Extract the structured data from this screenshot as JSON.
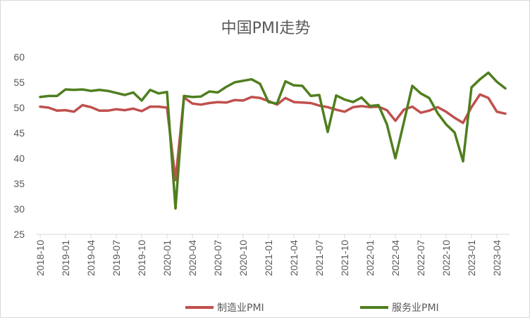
{
  "chart_data": {
    "type": "line",
    "title": "中国PMI走势",
    "xlabel": "",
    "ylabel": "",
    "ylim": [
      25,
      60
    ],
    "yticks": [
      "25",
      "30",
      "35",
      "40",
      "45",
      "50",
      "55",
      "60"
    ],
    "grid": false,
    "legend_position": "bottom",
    "x": [
      "2018-10",
      "2018-11",
      "2018-12",
      "2019-01",
      "2019-02",
      "2019-03",
      "2019-04",
      "2019-05",
      "2019-06",
      "2019-07",
      "2019-08",
      "2019-09",
      "2019-10",
      "2019-11",
      "2019-12",
      "2020-01",
      "2020-02",
      "2020-03",
      "2020-04",
      "2020-05",
      "2020-06",
      "2020-07",
      "2020-08",
      "2020-09",
      "2020-10",
      "2020-11",
      "2020-12",
      "2021-01",
      "2021-02",
      "2021-03",
      "2021-04",
      "2021-05",
      "2021-06",
      "2021-07",
      "2021-08",
      "2021-09",
      "2021-10",
      "2021-11",
      "2021-12",
      "2022-01",
      "2022-02",
      "2022-03",
      "2022-04",
      "2022-05",
      "2022-06",
      "2022-07",
      "2022-08",
      "2022-09",
      "2022-10",
      "2022-11",
      "2022-12",
      "2023-01",
      "2023-02",
      "2023-03",
      "2023-04",
      "2023-05"
    ],
    "xtick_labels": [
      "2018-10",
      "2019-01",
      "2019-04",
      "2019-07",
      "2019-10",
      "2020-01",
      "2020-04",
      "2020-07",
      "2020-10",
      "2021-01",
      "2021-04",
      "2021-07",
      "2021-10",
      "2022-01",
      "2022-04",
      "2022-07",
      "2022-10",
      "2023-01",
      "2023-04"
    ],
    "series": [
      {
        "name": "制造业PMI",
        "color": "#c0504d",
        "values": [
          50.2,
          50.0,
          49.4,
          49.5,
          49.2,
          50.5,
          50.1,
          49.4,
          49.4,
          49.7,
          49.5,
          49.8,
          49.3,
          50.2,
          50.2,
          50.0,
          35.7,
          52.0,
          50.8,
          50.6,
          50.9,
          51.1,
          51.0,
          51.5,
          51.4,
          52.1,
          51.9,
          51.3,
          50.6,
          51.9,
          51.1,
          51.0,
          50.9,
          50.4,
          50.1,
          49.6,
          49.2,
          50.1,
          50.3,
          50.1,
          50.2,
          49.5,
          47.4,
          49.6,
          50.2,
          49.0,
          49.4,
          50.1,
          49.2,
          48.0,
          47.0,
          50.1,
          52.6,
          51.9,
          49.2,
          48.8
        ]
      },
      {
        "name": "服务业PMI",
        "color": "#4f7f1f",
        "values": [
          52.1,
          52.3,
          52.3,
          53.6,
          53.5,
          53.6,
          53.3,
          53.5,
          53.3,
          52.9,
          52.5,
          53.0,
          51.4,
          53.5,
          52.8,
          53.1,
          30.1,
          52.3,
          52.1,
          52.2,
          53.2,
          53.0,
          54.1,
          55.0,
          55.3,
          55.6,
          54.7,
          51.1,
          50.8,
          55.2,
          54.4,
          54.3,
          52.3,
          52.5,
          45.2,
          52.4,
          51.6,
          51.1,
          52.0,
          50.3,
          50.5,
          46.7,
          40.0,
          47.1,
          54.3,
          52.8,
          51.9,
          48.9,
          46.7,
          45.1,
          39.4,
          54.0,
          55.6,
          56.9,
          55.1,
          53.8
        ]
      }
    ]
  }
}
